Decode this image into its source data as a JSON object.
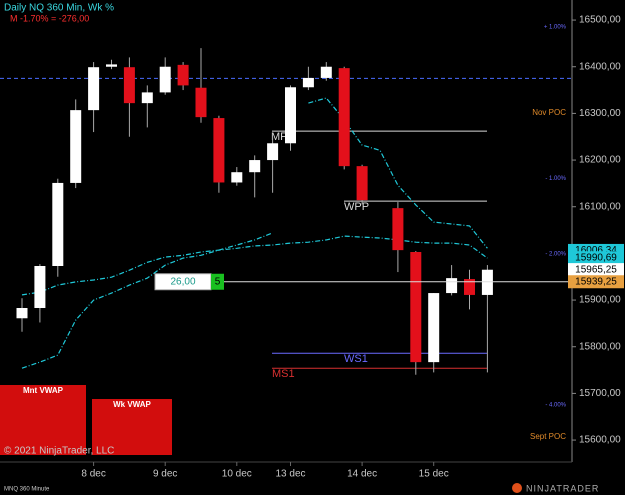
{
  "header": {
    "title": "Daily NQ 360 Min, Wk %",
    "subtitle": "M -1.70% = -276,00"
  },
  "chart_data": {
    "type": "candlestick",
    "categories": [
      null,
      null,
      null,
      null,
      "8 dec",
      null,
      null,
      null,
      "9 dec",
      null,
      null,
      null,
      "10 dec",
      null,
      null,
      "13 dec",
      null,
      null,
      null,
      "14 dec",
      null,
      null,
      null,
      "15 dec",
      null,
      null,
      null
    ],
    "open": [
      15861,
      15883,
      15973,
      16151,
      16307,
      16400,
      16399,
      16322,
      16345,
      16404,
      16355,
      16290,
      16152,
      16174,
      16200,
      16236,
      16356,
      16376,
      16397,
      16187,
      null,
      16097,
      16003,
      15767,
      15915,
      15945,
      15911
    ],
    "high": [
      15904,
      15977,
      16160,
      16330,
      16410,
      16415,
      16420,
      16360,
      16420,
      16410,
      16440,
      16295,
      16185,
      16210,
      16250,
      16360,
      16400,
      16410,
      16400,
      16190,
      null,
      16110,
      16005,
      15915,
      15975,
      15965,
      15975
    ],
    "low": [
      15832,
      15852,
      15950,
      16140,
      16260,
      16395,
      16250,
      16270,
      16340,
      16350,
      16280,
      16130,
      16145,
      16120,
      16130,
      16220,
      16350,
      16370,
      16180,
      16105,
      null,
      15960,
      15740,
      15745,
      15910,
      15880,
      15745
    ],
    "close": [
      15883,
      15973,
      16151,
      16307,
      16399,
      16405,
      16322,
      16345,
      16400,
      16360,
      16292,
      16152,
      16174,
      16200,
      16236,
      16356,
      16376,
      16400,
      16187,
      16114,
      null,
      16007,
      15767,
      15915,
      15947,
      15911,
      15965
    ],
    "up_color": "#ffffff",
    "down_color": "#e3101b",
    "ylim": [
      15553,
      16543
    ],
    "yticks": [
      {
        "value": 15600,
        "label": "15600,00"
      },
      {
        "value": 15700,
        "label": "15700,00"
      },
      {
        "value": 15800,
        "label": "15800,00"
      },
      {
        "value": 15900,
        "label": "15900,00"
      },
      {
        "value": 16000,
        "label": "16000,00"
      },
      {
        "value": 16100,
        "label": "16100,00"
      },
      {
        "value": 16200,
        "label": "16200,00"
      },
      {
        "value": 16300,
        "label": "16300,00"
      },
      {
        "value": 16400,
        "label": "16400,00"
      },
      {
        "value": 16500,
        "label": "16500,00"
      }
    ],
    "series": [
      {
        "color": "#1fc8d8",
        "values": [
          15754,
          15767,
          15782,
          15857,
          15900,
          15915,
          15932,
          15947,
          15975,
          15990,
          15996,
          16007,
          16018,
          16029,
          16044,
          null,
          null,
          null,
          null,
          null,
          null,
          null,
          null,
          null,
          null,
          null,
          null
        ]
      },
      {
        "color": "#1fc8d8",
        "values": [
          15911,
          15917,
          15932,
          15939,
          15943,
          15949,
          15964,
          15981,
          15992,
          15996,
          16003,
          16007,
          16011,
          16016,
          16018,
          16022,
          16024,
          16029,
          16037,
          16035,
          16033,
          16029,
          16024,
          16022,
          16022,
          16018,
          15990
        ]
      },
      {
        "color": "#1fc8d8",
        "values": [
          null,
          null,
          null,
          null,
          null,
          null,
          null,
          null,
          null,
          null,
          null,
          null,
          null,
          null,
          null,
          null,
          16322,
          16333,
          16286,
          16232,
          16221,
          16146,
          16104,
          16067,
          16063,
          16059,
          16011
        ]
      }
    ],
    "reference_line": {
      "value": 16375,
      "color": "#4a6cff"
    },
    "levels": [
      {
        "name": "MF",
        "value": 16262,
        "color": "#d8d8d8"
      },
      {
        "name": "WPP",
        "value": 16112,
        "color": "#d8d8d8"
      },
      {
        "name": "WS1",
        "value": 15786,
        "color": "#6a6aff"
      },
      {
        "name": "MS1",
        "value": 15754,
        "color": "#d83030"
      }
    ],
    "annotations": [
      {
        "label": "+ 1.00%",
        "value": 16485,
        "color": "#6a6aff"
      },
      {
        "label": "Nov POC",
        "value": 16301,
        "color": "#e08a2a"
      },
      {
        "label": "- 1.00%",
        "value": 16161,
        "color": "#6a6aff"
      },
      {
        "label": "- 2.00%",
        "value": 15999,
        "color": "#6a6aff"
      },
      {
        "label": "- 4.00%",
        "value": 15675,
        "color": "#6a6aff"
      },
      {
        "label": "Sept POC",
        "value": 15607,
        "color": "#e08a2a"
      }
    ],
    "price_tags": [
      {
        "value": 16006.34,
        "label": "16006,34",
        "color": "#1fc8d8"
      },
      {
        "value": 15990.69,
        "label": "15990,69",
        "color": "#1fc8d8"
      },
      {
        "value": 15965.25,
        "label": "15965,25",
        "color": "#ffffff"
      },
      {
        "value": 15939.25,
        "label": "15939,25",
        "color": "#e8a040"
      }
    ],
    "order": {
      "price": "26,00",
      "quantity": 5
    }
  },
  "buttons": [
    "Mnt VWAP",
    "Wk VWAP"
  ],
  "footer": {
    "copyright": "© 2021 NinjaTrader, LLC",
    "instrument": "MNQ 360 Minute",
    "logo": "NINJATRADER"
  }
}
